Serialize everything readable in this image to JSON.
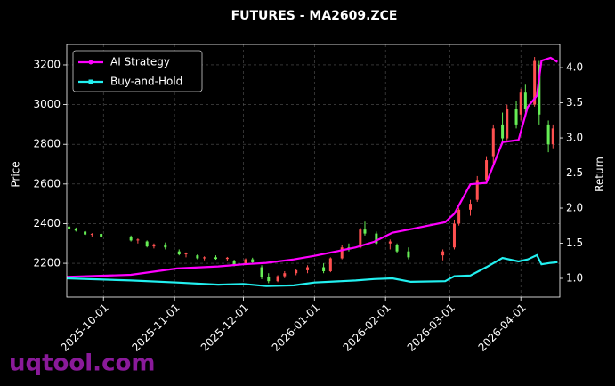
{
  "chart_data": {
    "type": "candlestick",
    "title": "FUTURES - MA2609.ZCE",
    "ylabel": "Price",
    "y2label": "Return",
    "watermark": "uqtool.com",
    "grid": true,
    "legend": "upper left",
    "up_color": "#ff5050",
    "down_color": "#66ee55",
    "xlim": [
      "2025-09-15",
      "2026-04-18"
    ],
    "xticks": [
      "2025-10-01",
      "2025-11-01",
      "2025-12-01",
      "2026-01-01",
      "2026-02-01",
      "2026-03-01",
      "2026-04-01"
    ],
    "ylim": [
      2030,
      3303
    ],
    "yticks": [
      2200,
      2400,
      2600,
      2800,
      3000,
      3200
    ],
    "y2lim": [
      0.734,
      4.33
    ],
    "y2ticks": [
      {
        "value": 1,
        "label": "1.0"
      },
      1.5,
      {
        "value": 2,
        "label": "2.0"
      },
      2.5,
      {
        "value": 3,
        "label": "3.0"
      },
      3.5,
      {
        "value": 4,
        "label": "4.0"
      }
    ],
    "candles": {
      "x": [
        "2025-09-16",
        "2025-09-19",
        "2025-09-23",
        "2025-09-26",
        "2025-09-30",
        "2025-10-13",
        "2025-10-16",
        "2025-10-20",
        "2025-10-23",
        "2025-10-28",
        "2025-11-03",
        "2025-11-06",
        "2025-11-11",
        "2025-11-14",
        "2025-11-19",
        "2025-11-24",
        "2025-11-27",
        "2025-12-02",
        "2025-12-05",
        "2025-12-09",
        "2025-12-12",
        "2025-12-16",
        "2025-12-19",
        "2025-12-24",
        "2025-12-29",
        "2026-01-05",
        "2026-01-08",
        "2026-01-13",
        "2026-01-16",
        "2026-01-21",
        "2026-01-23",
        "2026-01-28",
        "2026-02-03",
        "2026-02-06",
        "2026-02-11",
        "2026-02-26",
        "2026-03-03",
        "2026-03-05",
        "2026-03-10",
        "2026-03-13",
        "2026-03-17",
        "2026-03-20",
        "2026-03-24",
        "2026-03-26",
        "2026-03-30",
        "2026-04-01",
        "2026-04-03",
        "2026-04-07",
        "2026-04-09",
        "2026-04-13",
        "2026-04-15"
      ],
      "open": [
        2385,
        2375,
        2360,
        2345,
        2348,
        2335,
        2315,
        2310,
        2285,
        2295,
        2260,
        2245,
        2240,
        2225,
        2230,
        2222,
        2210,
        2200,
        2220,
        2180,
        2130,
        2110,
        2135,
        2150,
        2165,
        2180,
        2160,
        2225,
        2280,
        2280,
        2370,
        2350,
        2300,
        2290,
        2260,
        2240,
        2280,
        2400,
        2470,
        2520,
        2620,
        2740,
        2900,
        2830,
        2980,
        2950,
        3060,
        3000,
        3200,
        2900,
        2800
      ],
      "high": [
        2392,
        2380,
        2365,
        2352,
        2350,
        2340,
        2325,
        2315,
        2300,
        2305,
        2270,
        2255,
        2245,
        2235,
        2240,
        2232,
        2218,
        2225,
        2228,
        2190,
        2150,
        2140,
        2160,
        2170,
        2190,
        2200,
        2230,
        2290,
        2300,
        2380,
        2410,
        2360,
        2320,
        2300,
        2280,
        2270,
        2420,
        2480,
        2520,
        2640,
        2740,
        2900,
        2960,
        3000,
        3020,
        3080,
        3100,
        3240,
        3220,
        2920,
        2900
      ],
      "low": [
        2370,
        2360,
        2340,
        2335,
        2330,
        2310,
        2300,
        2280,
        2275,
        2270,
        2240,
        2230,
        2220,
        2215,
        2218,
        2210,
        2185,
        2195,
        2200,
        2120,
        2100,
        2105,
        2125,
        2140,
        2150,
        2150,
        2155,
        2220,
        2260,
        2275,
        2340,
        2290,
        2270,
        2250,
        2220,
        2215,
        2270,
        2390,
        2440,
        2510,
        2600,
        2700,
        2800,
        2820,
        2880,
        2920,
        2960,
        2990,
        2900,
        2760,
        2780
      ],
      "close": [
        2375,
        2365,
        2345,
        2348,
        2335,
        2315,
        2320,
        2285,
        2295,
        2280,
        2245,
        2250,
        2225,
        2230,
        2222,
        2228,
        2190,
        2220,
        2205,
        2130,
        2110,
        2135,
        2150,
        2165,
        2180,
        2160,
        2225,
        2280,
        2270,
        2370,
        2350,
        2300,
        2310,
        2260,
        2230,
        2260,
        2400,
        2470,
        2500,
        2620,
        2720,
        2880,
        2830,
        2980,
        2900,
        3060,
        2980,
        3220,
        2950,
        2800,
        2880
      ]
    },
    "x": [
      "2025-09-15",
      "2025-10-13",
      "2025-11-02",
      "2025-11-20",
      "2025-12-01",
      "2025-12-11",
      "2025-12-23",
      "2026-01-01",
      "2026-01-19",
      "2026-01-27",
      "2026-02-04",
      "2026-02-12",
      "2026-02-27",
      "2026-03-03",
      "2026-03-10",
      "2026-03-17",
      "2026-03-24",
      "2026-03-31",
      "2026-04-04",
      "2026-04-08",
      "2026-04-10",
      "2026-04-14",
      "2026-04-17"
    ],
    "series": [
      {
        "name": "AI Strategy",
        "color": "#ff00ff",
        "axis": "y2",
        "values": [
          1.02,
          1.05,
          1.14,
          1.17,
          1.2,
          1.22,
          1.27,
          1.32,
          1.44,
          1.52,
          1.65,
          1.7,
          1.8,
          1.92,
          2.34,
          2.36,
          2.94,
          2.97,
          3.44,
          3.6,
          4.1,
          4.14,
          4.08
        ]
      },
      {
        "name": "Buy-and-Hold",
        "color": "#22f0f0",
        "axis": "y2",
        "values": [
          1.0,
          0.97,
          0.94,
          0.91,
          0.92,
          0.89,
          0.9,
          0.94,
          0.97,
          0.99,
          1.0,
          0.95,
          0.96,
          1.03,
          1.04,
          1.16,
          1.29,
          1.24,
          1.27,
          1.33,
          1.2,
          1.22,
          1.23
        ]
      }
    ]
  }
}
